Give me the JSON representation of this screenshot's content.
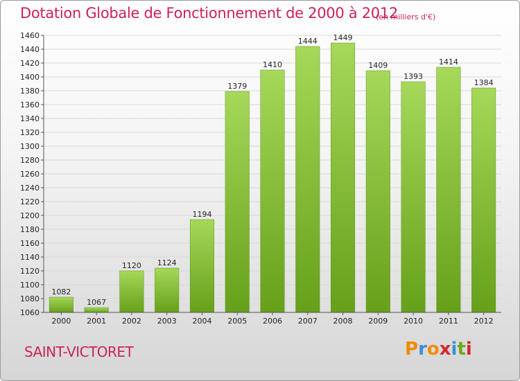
{
  "title": "Dotation Globale de Fonctionnement de 2000 à 2012",
  "unit": "(en milliers d'€)",
  "commune": "SAINT-VICTORET",
  "logo": {
    "text": "Proxiti",
    "colors": [
      "#f08c00",
      "#3a8fd6",
      "#f08c00",
      "#d42a2a",
      "#3a8fd6",
      "#6aaa1e",
      "#d42a2a"
    ]
  },
  "colors": {
    "title": "#cc2255",
    "bar_light": "#a6d85a",
    "bar_dark": "#66a01a"
  },
  "chart_data": {
    "type": "bar",
    "categories": [
      "2000",
      "2001",
      "2002",
      "2003",
      "2004",
      "2005",
      "2006",
      "2007",
      "2008",
      "2009",
      "2010",
      "2011",
      "2012"
    ],
    "values": [
      1082,
      1067,
      1120,
      1124,
      1194,
      1379,
      1410,
      1444,
      1449,
      1409,
      1393,
      1414,
      1384
    ],
    "ylim": [
      1060,
      1460
    ],
    "yticks": [
      1060,
      1080,
      1100,
      1120,
      1140,
      1160,
      1180,
      1200,
      1220,
      1240,
      1260,
      1280,
      1300,
      1320,
      1340,
      1360,
      1380,
      1400,
      1420,
      1440,
      1460
    ],
    "grid": true,
    "data_labels": true
  }
}
